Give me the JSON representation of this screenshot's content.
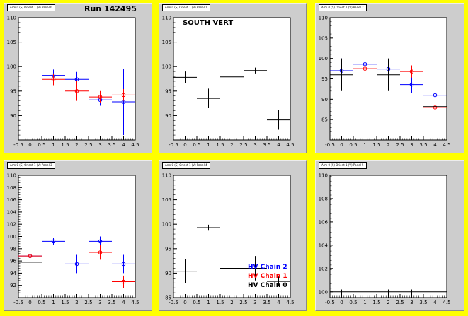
{
  "run_label": "Run 142495",
  "south_vert_label": "SOUTH VERT",
  "legend": [
    {
      "label": "HV Chain 2",
      "color": "#0000ff"
    },
    {
      "label": "HV Chain 1",
      "color": "#ff0000"
    },
    {
      "label": "HV Chain 0",
      "color": "#000000"
    }
  ],
  "colors": {
    "chain0": "#000000",
    "chain1": "#ff0000",
    "chain2": "#0000ff",
    "background": "#ffff00",
    "pad": "#cdcdcd"
  },
  "chart_data": [
    {
      "type": "scatter",
      "title": "Arm 0 (S) Orient 1 (V) Panel 0",
      "xlim": [
        -0.5,
        4.5
      ],
      "ylim": [
        85,
        110
      ],
      "xticks": [
        "-0.5",
        "0",
        "0.5",
        "1",
        "1.5",
        "2",
        "2.5",
        "3",
        "3.5",
        "4",
        "4.5"
      ],
      "yticks": [
        "90",
        "95",
        "100",
        "105",
        "110"
      ],
      "series": [
        {
          "color": "#0000ff",
          "points": [
            {
              "x": 1,
              "y": 98.2,
              "err": 1.2
            },
            {
              "x": 2,
              "y": 97.4,
              "err": 1.5
            },
            {
              "x": 3,
              "y": 93.2,
              "err": 1.2
            },
            {
              "x": 4,
              "y": 92.8,
              "err": 6.8
            }
          ]
        },
        {
          "color": "#ff0000",
          "points": [
            {
              "x": 1,
              "y": 97.4,
              "err": 1.2
            },
            {
              "x": 2,
              "y": 95.0,
              "err": 2.0
            },
            {
              "x": 3,
              "y": 93.8,
              "err": 1.2
            },
            {
              "x": 4,
              "y": 94.2,
              "err": 1.2
            }
          ]
        }
      ]
    },
    {
      "type": "scatter",
      "title": "Arm 0 (S) Orient 1 (V) Panel 1",
      "xlim": [
        -0.5,
        4.5
      ],
      "ylim": [
        85,
        110
      ],
      "xticks": [
        "-0.5",
        "0",
        "0.5",
        "1",
        "1.5",
        "2",
        "2.5",
        "3",
        "3.5",
        "4",
        "4.5"
      ],
      "yticks": [
        "90",
        "95",
        "100",
        "105",
        "110"
      ],
      "series": [
        {
          "color": "#000000",
          "points": [
            {
              "x": 0,
              "y": 97.8,
              "err": 1.2
            },
            {
              "x": 1,
              "y": 93.5,
              "err": 2.0
            },
            {
              "x": 2,
              "y": 97.9,
              "err": 1.2
            },
            {
              "x": 3,
              "y": 99.2,
              "err": 0.6
            },
            {
              "x": 4,
              "y": 89.1,
              "err": 2.0
            }
          ]
        }
      ]
    },
    {
      "type": "scatter",
      "title": "Arm 0 (S) Orient 1 (V) Panel 2",
      "xlim": [
        -0.5,
        4.5
      ],
      "ylim": [
        80,
        110
      ],
      "xticks": [
        "-0.5",
        "0",
        "0.5",
        "1",
        "1.5",
        "2",
        "2.5",
        "3",
        "3.5",
        "4",
        "4.5"
      ],
      "yticks": [
        "85",
        "90",
        "95",
        "100",
        "105",
        "110"
      ],
      "series": [
        {
          "color": "#0000ff",
          "points": [
            {
              "x": 0,
              "y": 97.0,
              "err": 3.0
            },
            {
              "x": 1,
              "y": 98.6,
              "err": 1.0
            },
            {
              "x": 2,
              "y": 97.4,
              "err": 2.5
            },
            {
              "x": 3,
              "y": 93.6,
              "err": 2.0
            },
            {
              "x": 4,
              "y": 91.0,
              "err": 3.5
            }
          ]
        },
        {
          "color": "#ff0000",
          "points": [
            {
              "x": 1,
              "y": 97.5,
              "err": 1.0
            },
            {
              "x": 3,
              "y": 96.8,
              "err": 1.5
            },
            {
              "x": 4,
              "y": 88.0,
              "err": 3.0
            }
          ]
        },
        {
          "color": "#000000",
          "points": [
            {
              "x": 0,
              "y": 96.0,
              "err": 4.0
            },
            {
              "x": 2,
              "y": 96.0,
              "err": 4.0
            },
            {
              "x": 4,
              "y": 88.2,
              "err": 7.0
            }
          ]
        }
      ]
    },
    {
      "type": "scatter",
      "title": "Arm 0 (S) Orient 1 (V) Panel 3",
      "xlim": [
        -0.5,
        4.5
      ],
      "ylim": [
        90,
        110
      ],
      "xticks": [
        "-0.5",
        "0",
        "0.5",
        "1",
        "1.5",
        "2",
        "2.5",
        "3",
        "3.5",
        "4",
        "4.5"
      ],
      "yticks": [
        "92",
        "94",
        "96",
        "98",
        "100",
        "102",
        "104",
        "106",
        "108",
        "110"
      ],
      "series": [
        {
          "color": "#0000ff",
          "points": [
            {
              "x": 0,
              "y": 96.8,
              "err": 0.8
            },
            {
              "x": 1,
              "y": 99.2,
              "err": 0.6
            },
            {
              "x": 2,
              "y": 95.5,
              "err": 1.5
            },
            {
              "x": 3,
              "y": 99.2,
              "err": 0.8
            },
            {
              "x": 4,
              "y": 95.5,
              "err": 1.5
            }
          ]
        },
        {
          "color": "#ff0000",
          "points": [
            {
              "x": 0,
              "y": 96.8,
              "err": 0.8
            },
            {
              "x": 3,
              "y": 97.4,
              "err": 1.2
            },
            {
              "x": 4,
              "y": 92.6,
              "err": 1.0
            }
          ]
        },
        {
          "color": "#000000",
          "points": [
            {
              "x": 0,
              "y": 95.8,
              "err": 4.0
            }
          ]
        }
      ]
    },
    {
      "type": "scatter",
      "title": "Arm 0 (S) Orient 1 (V) Panel 4",
      "xlim": [
        -0.5,
        4.5
      ],
      "ylim": [
        85,
        110
      ],
      "xticks": [
        "-0.5",
        "0",
        "0.5",
        "1",
        "1.5",
        "2",
        "2.5",
        "3",
        "3.5",
        "4",
        "4.5"
      ],
      "yticks": [
        "85",
        "90",
        "95",
        "100",
        "105",
        "110"
      ],
      "series": [
        {
          "color": "#000000",
          "points": [
            {
              "x": 0,
              "y": 90.4,
              "err": 2.5
            },
            {
              "x": 1,
              "y": 99.3,
              "err": 0.6
            },
            {
              "x": 2,
              "y": 91.0,
              "err": 2.5
            },
            {
              "x": 3,
              "y": 91.0,
              "err": 2.5
            },
            {
              "x": 4,
              "y": 88.3,
              "err": 1.0
            }
          ]
        }
      ]
    },
    {
      "type": "scatter",
      "title": "Arm 0 (S) Orient 1 (V) Panel 5",
      "xlim": [
        -0.5,
        4.5
      ],
      "ylim": [
        99.5,
        110
      ],
      "xticks": [
        "-0.5",
        "0",
        "0.5",
        "1",
        "1.5",
        "2",
        "2.5",
        "3",
        "3.5",
        "4",
        "4.5"
      ],
      "yticks": [
        "100",
        "102",
        "104",
        "106",
        "108",
        "110"
      ],
      "series": [
        {
          "color": "#000000",
          "points": [
            {
              "x": 0,
              "y": 100,
              "err": 0.2
            },
            {
              "x": 1,
              "y": 100,
              "err": 0.2
            },
            {
              "x": 2,
              "y": 100,
              "err": 0.2
            },
            {
              "x": 3,
              "y": 100,
              "err": 0.2
            },
            {
              "x": 4,
              "y": 100,
              "err": 0.2
            }
          ]
        }
      ]
    }
  ]
}
